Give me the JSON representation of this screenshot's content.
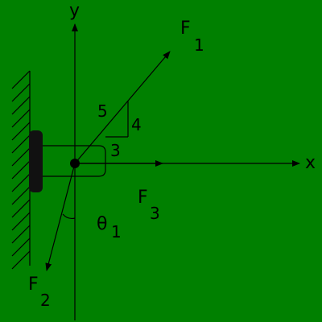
{
  "diagram": {
    "background": "#008000",
    "ink": "#000000",
    "axis_x_label": "x",
    "axis_y_label": "y",
    "force_1": {
      "symbol": "F",
      "subscript": "1"
    },
    "force_2": {
      "symbol": "F",
      "subscript": "2"
    },
    "force_3": {
      "symbol": "F",
      "subscript": "3"
    },
    "angle": {
      "symbol": "θ",
      "subscript": "1"
    },
    "slope_triangle": {
      "hypotenuse": "5",
      "rise": "4",
      "run": "3"
    }
  }
}
